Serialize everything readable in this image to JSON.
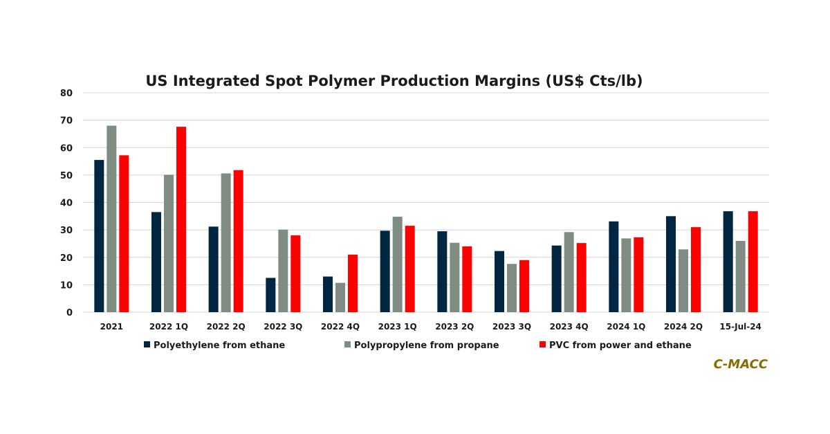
{
  "chart_data": {
    "type": "bar",
    "title": "US Integrated Spot Polymer Production Margins (US$ Cts/lb)",
    "xlabel": "",
    "ylabel": "",
    "ylim": [
      0,
      80
    ],
    "yticks": [
      0,
      10,
      20,
      30,
      40,
      50,
      60,
      70,
      80
    ],
    "grid": true,
    "legend_position": "bottom",
    "categories": [
      "2021",
      "2022 1Q",
      "2022 2Q",
      "2022 3Q",
      "2022 4Q",
      "2023 1Q",
      "2023 2Q",
      "2023 3Q",
      "2023 4Q",
      "2024 1Q",
      "2024 2Q",
      "15-Jul-24"
    ],
    "series": [
      {
        "name": "Polyethylene from ethane",
        "color": "#002642",
        "values": [
          55.5,
          36.5,
          31.2,
          12.5,
          13,
          29.7,
          29.5,
          22.3,
          24.3,
          33.1,
          35,
          36.8
        ]
      },
      {
        "name": "Polypropylene from propane",
        "color": "#7f8c82",
        "values": [
          68,
          50.1,
          50.6,
          30.1,
          10.7,
          34.8,
          25.3,
          17.6,
          29.2,
          26.9,
          22.9,
          26
        ]
      },
      {
        "name": "PVC from power and ethane",
        "color": "#ff0000",
        "values": [
          57.2,
          67.6,
          51.8,
          28,
          21,
          31.5,
          24,
          19,
          25.2,
          27.3,
          31,
          36.8
        ]
      }
    ]
  },
  "branding": {
    "label": "C-MACC",
    "color": "#8b6a00"
  }
}
